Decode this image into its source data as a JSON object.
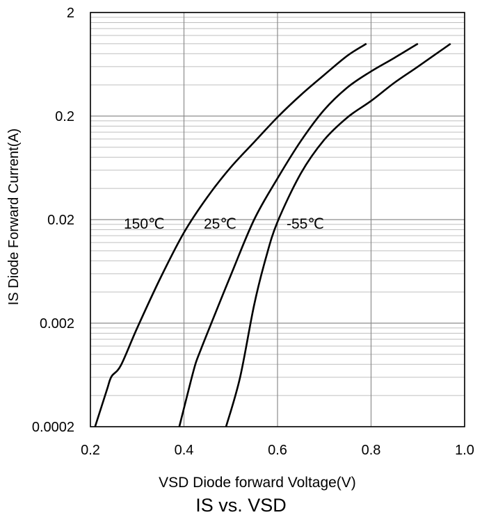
{
  "chart_data": {
    "type": "line",
    "title": "IS vs. VSD",
    "xlabel": "VSD Diode forward Voltage(V)",
    "ylabel": "IS Diode Forward Current(A)",
    "x_scale": "linear",
    "y_scale": "log",
    "xlim": [
      0.2,
      1.0
    ],
    "ylim": [
      0.0002,
      2
    ],
    "x_ticks": [
      "0.2",
      "0.4",
      "0.6",
      "0.8",
      "1.0"
    ],
    "y_ticks": [
      "0.0002",
      "0.002",
      "0.02",
      "0.2",
      "2"
    ],
    "grid": true,
    "legend": "inline curve labels",
    "series": [
      {
        "name": "150℃",
        "x": [
          0.21,
          0.235,
          0.245,
          0.265,
          0.3,
          0.35,
          0.4,
          0.45,
          0.5,
          0.55,
          0.6,
          0.65,
          0.7,
          0.75,
          0.79
        ],
        "y": [
          0.0002,
          0.00045,
          0.00061,
          0.00078,
          0.0018,
          0.0055,
          0.015,
          0.033,
          0.064,
          0.112,
          0.195,
          0.32,
          0.5,
          0.77,
          1.0
        ]
      },
      {
        "name": "25℃",
        "x": [
          0.39,
          0.415,
          0.425,
          0.435,
          0.45,
          0.5,
          0.55,
          0.6,
          0.65,
          0.7,
          0.75,
          0.8,
          0.85,
          0.9
        ],
        "y": [
          0.0002,
          0.00056,
          0.00082,
          0.00108,
          0.0016,
          0.0058,
          0.02,
          0.05,
          0.115,
          0.23,
          0.38,
          0.54,
          0.73,
          1.0
        ]
      },
      {
        "name": "-55℃",
        "x": [
          0.49,
          0.52,
          0.55,
          0.575,
          0.6,
          0.65,
          0.7,
          0.75,
          0.8,
          0.85,
          0.9,
          0.97
        ],
        "y": [
          0.0002,
          0.0006,
          0.003,
          0.0085,
          0.019,
          0.056,
          0.118,
          0.195,
          0.28,
          0.42,
          0.6,
          1.0
        ]
      }
    ]
  }
}
